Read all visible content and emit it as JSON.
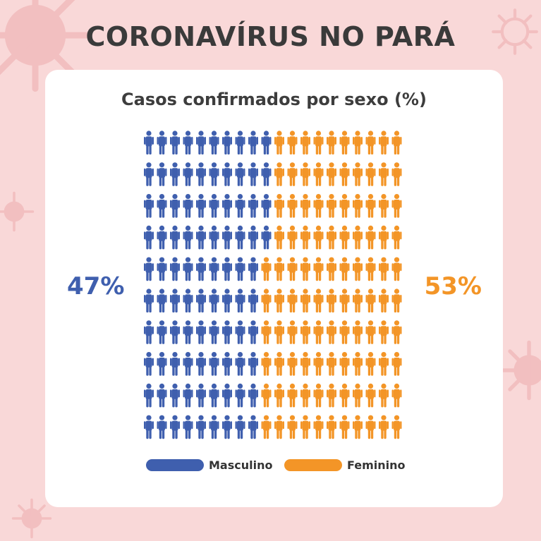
{
  "header": {
    "title": "CORONAVÍRUS NO PARÁ"
  },
  "chart_data": {
    "type": "waffle",
    "title": "Casos confirmados por sexo (%)",
    "total_icons": 200,
    "grid": {
      "rows": 10,
      "columns": 20
    },
    "series": [
      {
        "name": "Masculino",
        "value": 47,
        "label": "47%",
        "color": "#3f5fae",
        "icons": 94
      },
      {
        "name": "Feminino",
        "value": 53,
        "label": "53%",
        "color": "#f39527",
        "icons": 106
      }
    ],
    "legend_placement": "bottom"
  },
  "colors": {
    "background": "#f9d8d8",
    "card": "#ffffff",
    "title": "#3a3a3a"
  },
  "icons": {
    "person": "person-icon",
    "decoration": "virus-icon"
  }
}
